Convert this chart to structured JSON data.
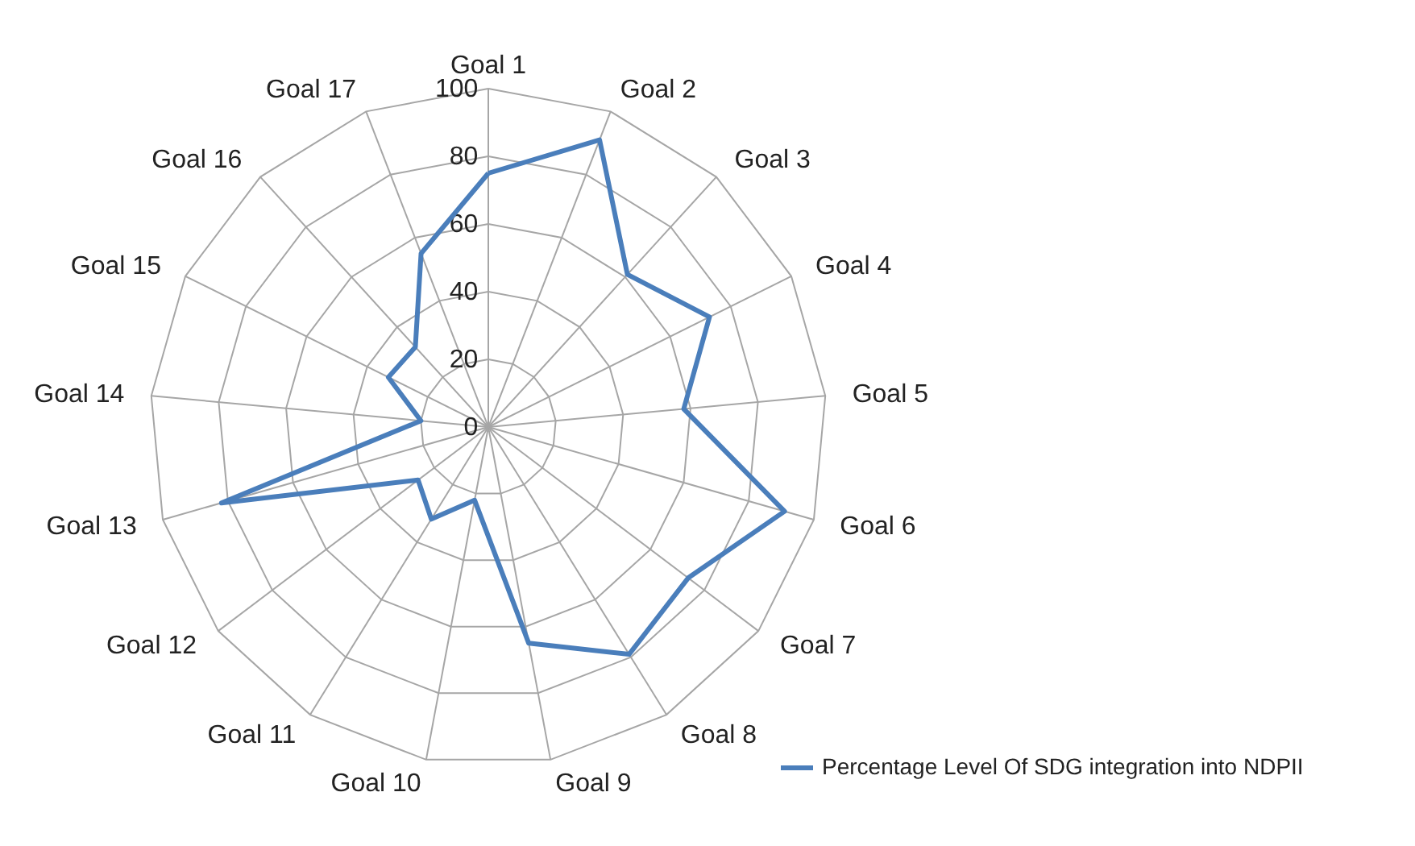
{
  "chart_data": {
    "type": "radar",
    "categories": [
      "Goal 1",
      "Goal 2",
      "Goal 3",
      "Goal 4",
      "Goal 5",
      "Goal 6",
      "Goal 7",
      "Goal 8",
      "Goal 9",
      "Goal 10",
      "Goal 11",
      "Goal 12",
      "Goal 13",
      "Goal 14",
      "Goal 15",
      "Goal 16",
      "Goal 17"
    ],
    "series": [
      {
        "name": "Percentage Level Of SDG integration into NDPII",
        "color": "#4a7ebb",
        "values": [
          75,
          91,
          61,
          73,
          58,
          91,
          74,
          79,
          65,
          22,
          32,
          26,
          82,
          20,
          33,
          32,
          55
        ]
      }
    ],
    "ylim": [
      0,
      100
    ],
    "yticks": [
      0,
      20,
      40,
      60,
      80,
      100
    ],
    "grid": true,
    "legend": "bottom right",
    "marker": "none",
    "line_style": "solid"
  }
}
